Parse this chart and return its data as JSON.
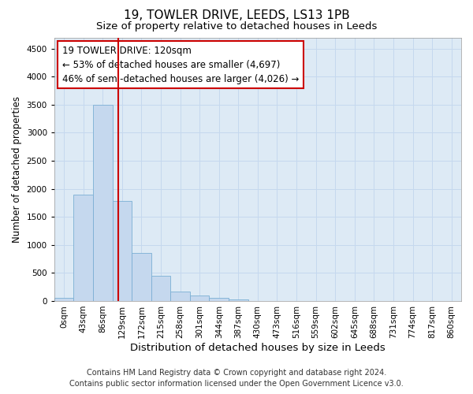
{
  "title": "19, TOWLER DRIVE, LEEDS, LS13 1PB",
  "subtitle": "Size of property relative to detached houses in Leeds",
  "xlabel": "Distribution of detached houses by size in Leeds",
  "ylabel": "Number of detached properties",
  "footer_line1": "Contains HM Land Registry data © Crown copyright and database right 2024.",
  "footer_line2": "Contains public sector information licensed under the Open Government Licence v3.0.",
  "annotation_title": "19 TOWLER DRIVE: 120sqm",
  "annotation_line1": "← 53% of detached houses are smaller (4,697)",
  "annotation_line2": "46% of semi-detached houses are larger (4,026) →",
  "bar_labels": [
    "0sqm",
    "43sqm",
    "86sqm",
    "129sqm",
    "172sqm",
    "215sqm",
    "258sqm",
    "301sqm",
    "344sqm",
    "387sqm",
    "430sqm",
    "473sqm",
    "516sqm",
    "559sqm",
    "602sqm",
    "645sqm",
    "688sqm",
    "731sqm",
    "774sqm",
    "817sqm",
    "860sqm"
  ],
  "bar_values": [
    50,
    1900,
    3500,
    1780,
    860,
    450,
    175,
    100,
    50,
    30,
    0,
    0,
    0,
    0,
    0,
    0,
    0,
    0,
    0,
    0,
    0
  ],
  "bar_color": "#c5d8ee",
  "bar_edge_color": "#7bafd4",
  "vline_color": "#cc0000",
  "annotation_box_color": "#cc0000",
  "annotation_bg": "#ffffff",
  "ylim": [
    0,
    4700
  ],
  "yticks": [
    0,
    500,
    1000,
    1500,
    2000,
    2500,
    3000,
    3500,
    4000,
    4500
  ],
  "grid_color": "#c5d8ee",
  "bg_color": "#ddeaf5",
  "title_fontsize": 11,
  "subtitle_fontsize": 9.5,
  "xlabel_fontsize": 9.5,
  "ylabel_fontsize": 8.5,
  "tick_fontsize": 7.5,
  "annotation_fontsize": 8.5,
  "footer_fontsize": 7
}
